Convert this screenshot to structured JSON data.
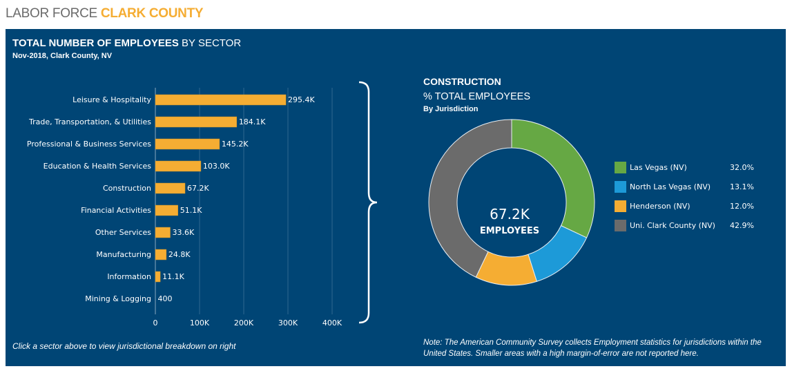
{
  "header": {
    "title_prefix": "LABOR FORCE",
    "title_accent": "CLARK COUNTY"
  },
  "panel": {
    "title_bold": "TOTAL NUMBER OF EMPLOYEES",
    "title_rest": "BY SECTOR",
    "subtitle": "Nov-2018, Clark County, NV",
    "hint": "Click a sector above to view jurisdictional breakdown on right",
    "note": "Note: The American Community Survey collects Employment statistics for jurisdictions within the United States. Smaller areas with a high margin-of-error are not reported here."
  },
  "colors": {
    "background": "#004575",
    "bar": "#f5ad33",
    "accent": "#f5ad33"
  },
  "chart_data": [
    {
      "type": "bar",
      "orientation": "horizontal",
      "title": "TOTAL NUMBER OF EMPLOYEES BY SECTOR",
      "categories": [
        "Leisure & Hospitality",
        "Trade, Transportation, & Utilities",
        "Professional & Business Services",
        "Education & Health Services",
        "Construction",
        "Financial Activities",
        "Other Services",
        "Manufacturing",
        "Information",
        "Mining & Logging"
      ],
      "values": [
        295400,
        184100,
        145200,
        103000,
        67200,
        51100,
        33600,
        24800,
        11100,
        400
      ],
      "value_labels": [
        "295.4K",
        "184.1K",
        "145.2K",
        "103.0K",
        "67.2K",
        "51.1K",
        "33.6K",
        "24.8K",
        "11.1K",
        "400"
      ],
      "xlim": [
        0,
        450000
      ],
      "x_ticks": [
        0,
        100000,
        200000,
        300000,
        400000
      ],
      "x_tick_labels": [
        "0",
        "100K",
        "200K",
        "300K",
        "400K"
      ],
      "grid": true,
      "xlabel": "",
      "ylabel": ""
    },
    {
      "type": "pie",
      "variant": "donut",
      "title": "CONSTRUCTION",
      "subtitle": "% TOTAL EMPLOYEES",
      "subtitle2": "By Jurisdiction",
      "center_value": "67.2K",
      "center_label": "EMPLOYEES",
      "labels": [
        "Las Vegas (NV)",
        "North Las Vegas (NV)",
        "Henderson (NV)",
        "Uni. Clark County (NV)"
      ],
      "values": [
        32.0,
        13.1,
        12.0,
        42.9
      ],
      "value_labels": [
        "32.0%",
        "13.1%",
        "12.0%",
        "42.9%"
      ],
      "colors": [
        "#66a844",
        "#1d9ad8",
        "#f5ad33",
        "#6b6b6b"
      ],
      "legend": "right"
    }
  ]
}
